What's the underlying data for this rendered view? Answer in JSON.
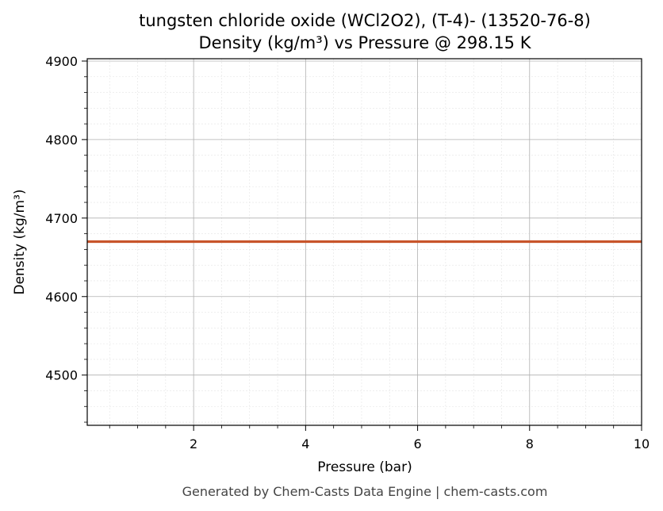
{
  "chart_data": {
    "type": "line",
    "title": "tungsten chloride oxide (WCl2O2), (T-4)- (13520-76-8)",
    "subtitle": "Density (kg/m³) vs Pressure @ 298.15 K",
    "xlabel": "Pressure (bar)",
    "ylabel": "Density (kg/m³)",
    "xlim": [
      0.1,
      10
    ],
    "ylim": [
      4436,
      4903
    ],
    "x_ticks": [
      2,
      4,
      6,
      8,
      10
    ],
    "x_tick_labels": [
      "2",
      "4",
      "6",
      "8",
      "10"
    ],
    "y_ticks": [
      4500,
      4600,
      4700,
      4800,
      4900
    ],
    "y_tick_labels": [
      "4500",
      "4600",
      "4700",
      "4800",
      "4900"
    ],
    "grid": true,
    "series": [
      {
        "color": "#c8552b",
        "x": [
          0.1,
          10
        ],
        "y": [
          4670,
          4670
        ]
      }
    ]
  },
  "footer": "Generated by Chem-Casts Data Engine | chem-casts.com"
}
